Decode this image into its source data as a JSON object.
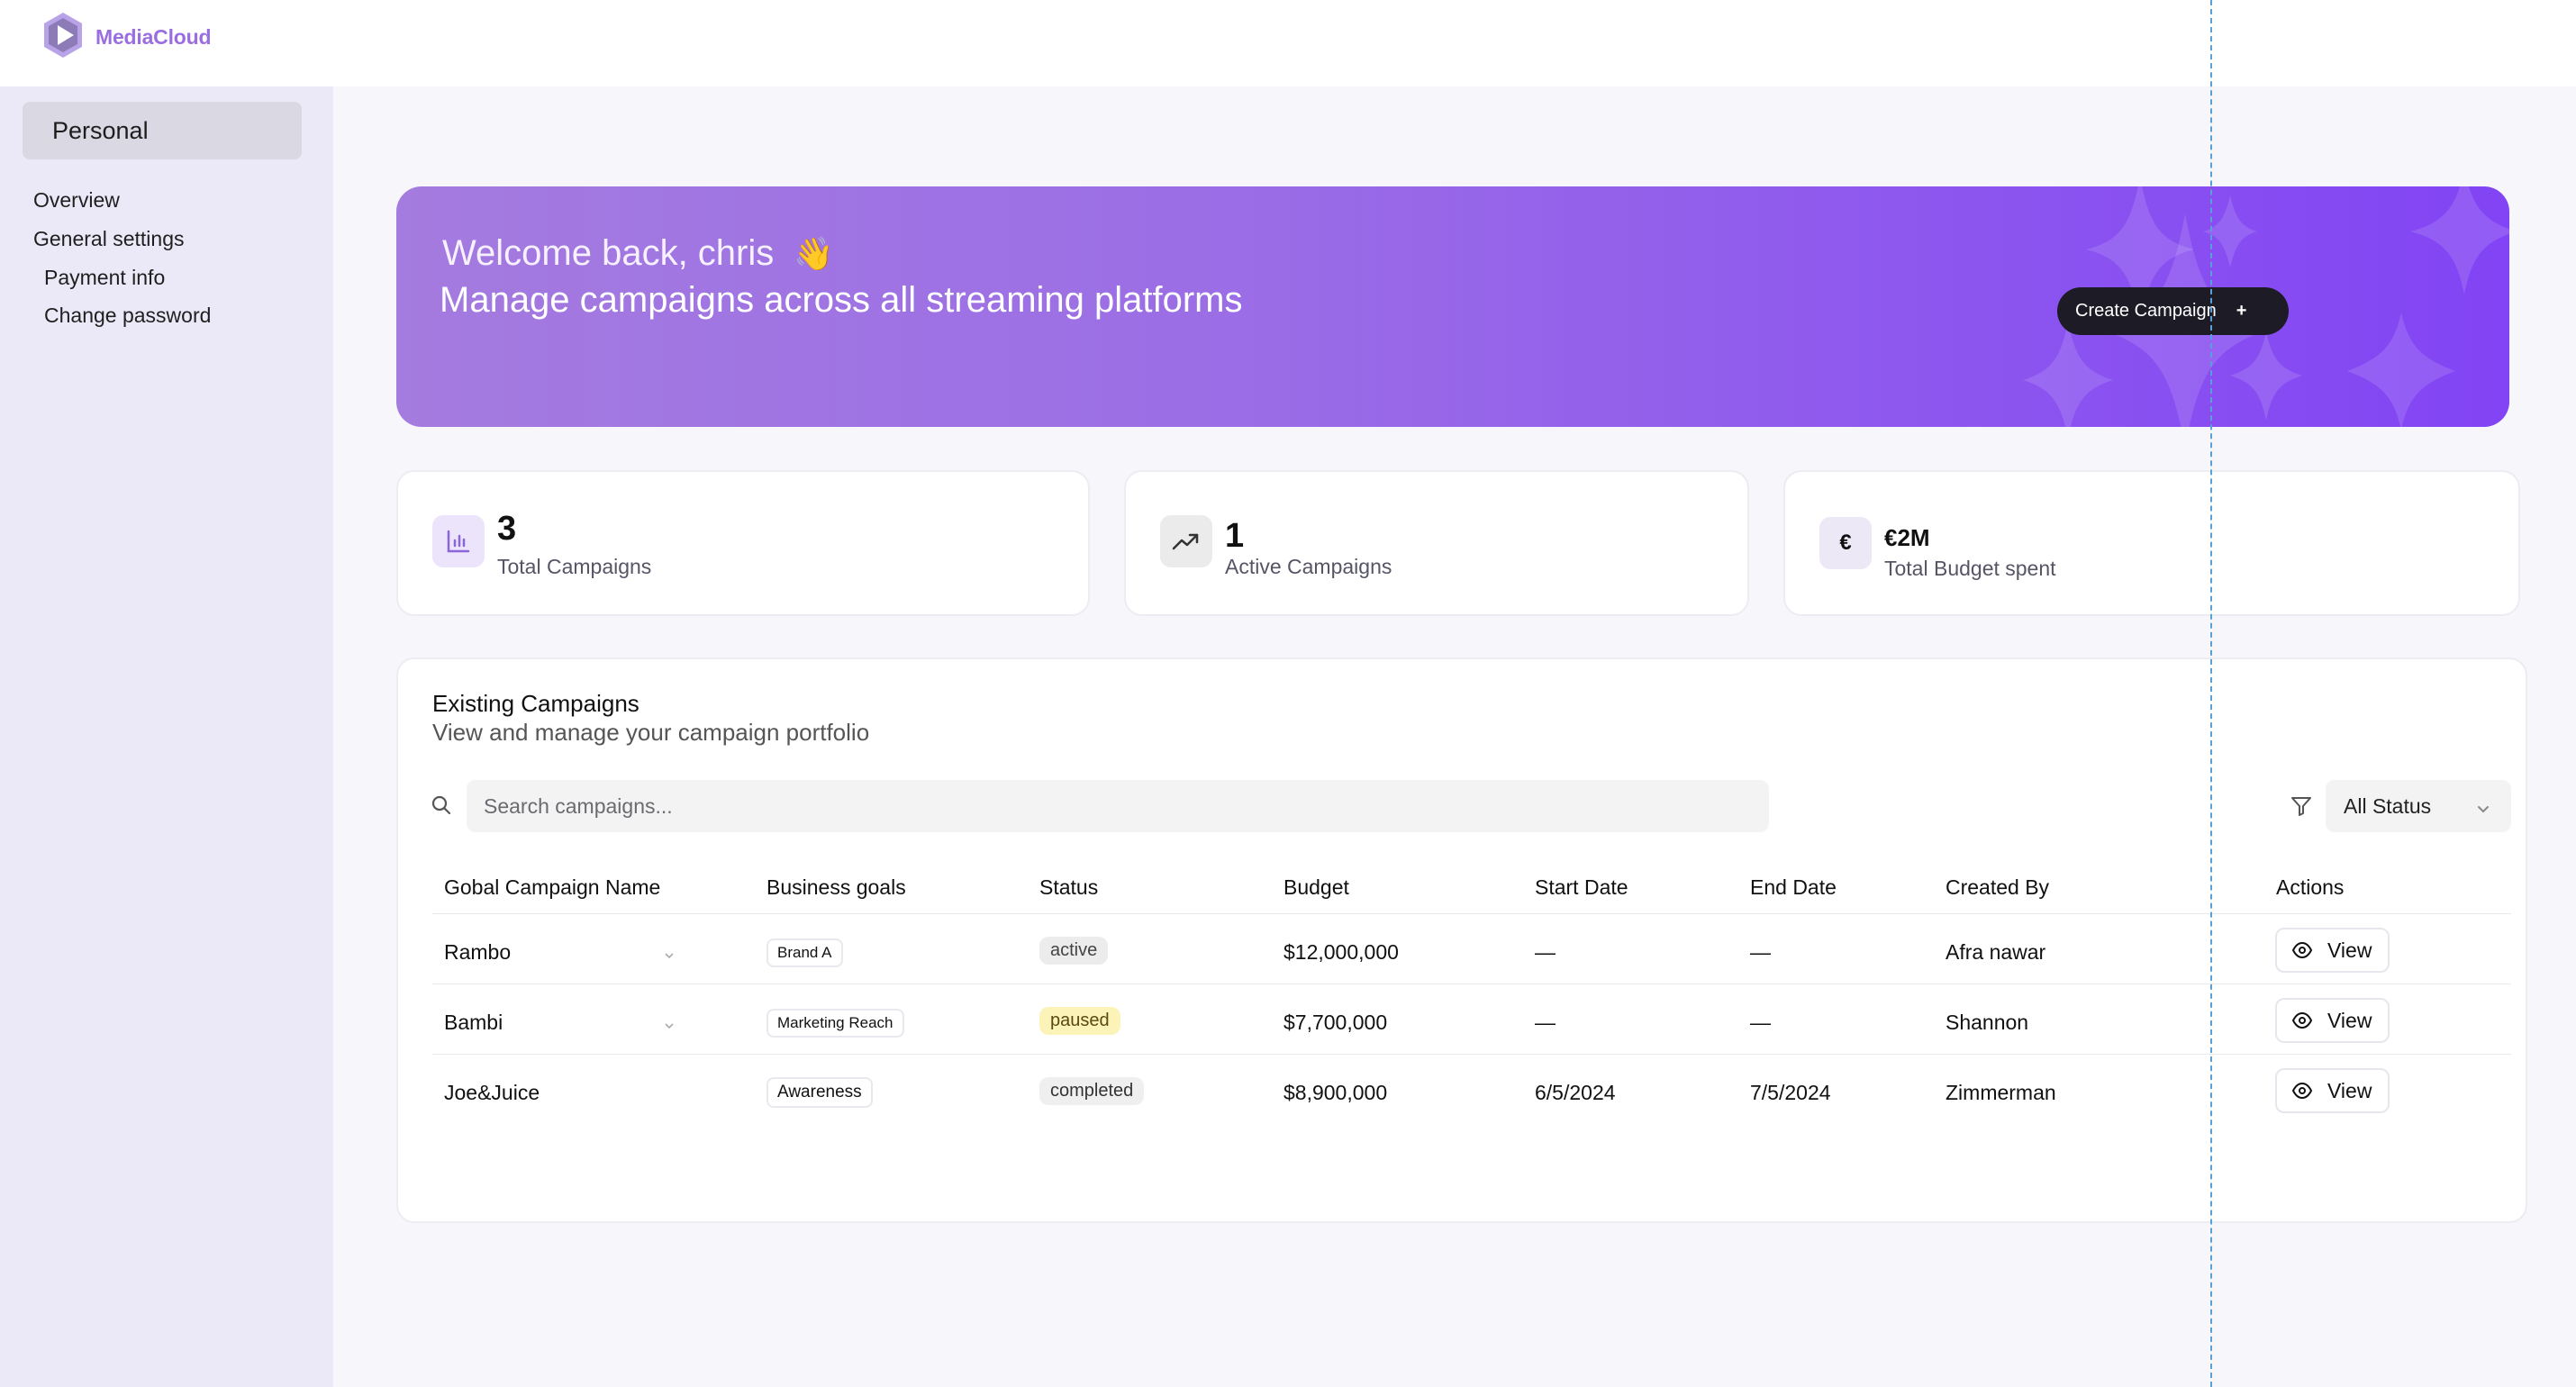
{
  "app": {
    "name": "MediaCloud",
    "brand_color": "#9a6ee0"
  },
  "sidebar": {
    "section": "Personal",
    "items": [
      {
        "label": "Overview"
      },
      {
        "label": "General settings"
      },
      {
        "label": "Payment info"
      },
      {
        "label": "Change password"
      }
    ]
  },
  "hero": {
    "greeting": "Welcome back, chris",
    "wave_icon": "👋",
    "subtitle": "Manage campaigns across all streaming platforms",
    "create_label": "Create Campaign",
    "create_plus": "+"
  },
  "stats": [
    {
      "value": "3",
      "label": "Total Campaigns",
      "icon": "bar-chart-icon"
    },
    {
      "value": "1",
      "label": "Active Campaigns",
      "icon": "trending-up-icon"
    },
    {
      "value": "€2M",
      "label": "Total Budget spent",
      "icon": "euro-icon",
      "symbol": "€"
    }
  ],
  "campaigns": {
    "title": "Existing Campaigns",
    "subtitle": "View and manage your campaign portfolio",
    "search_placeholder": "Search campaigns...",
    "filter_value": "All Status",
    "columns": [
      "Gobal Campaign Name",
      "Business goals",
      "Status",
      "Budget",
      "Start Date",
      "End Date",
      "Created By",
      "Actions"
    ],
    "rows": [
      {
        "name": "Rambo",
        "goal": "Brand A",
        "status": "active",
        "budget": "$12,000,000",
        "start": "—",
        "end": "—",
        "created_by": "Afra nawar",
        "action": "View"
      },
      {
        "name": "Bambi",
        "goal": "Marketing Reach",
        "status": "paused",
        "budget": "$7,700,000",
        "start": "—",
        "end": "—",
        "created_by": "Shannon",
        "action": "View"
      },
      {
        "name": "Joe&Juice",
        "goal": "Awareness",
        "status": "completed",
        "budget": "$8,900,000",
        "start": "6/5/2024",
        "end": "7/5/2024",
        "created_by": "Zimmerman",
        "action": "View"
      }
    ],
    "status_colors": {
      "active": "#ececec",
      "paused": "#fbf3b8",
      "completed": "#efefef"
    }
  }
}
